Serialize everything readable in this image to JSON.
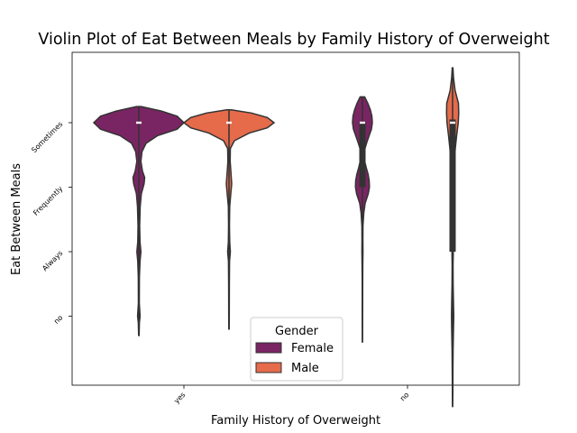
{
  "chart_data": {
    "type": "violin",
    "title": "Violin Plot of Eat Between Meals by Family History of Overweight",
    "xlabel": "Family History of Overweight",
    "ylabel": "Eat Between Meals",
    "categories": [
      "yes",
      "no"
    ],
    "y_categories": [
      "Sometimes",
      "Frequently",
      "Always",
      "no"
    ],
    "y_range": [
      -0.8,
      4.4
    ],
    "legend": {
      "title": "Gender",
      "placement": "lower center",
      "entries": [
        "Female",
        "Male"
      ]
    },
    "series": [
      {
        "name": "Female",
        "color": "#7a2563",
        "violins": [
          {
            "category": "yes",
            "median": 0,
            "q1": 0,
            "q3": 0,
            "profile": [
              [
                -0.25,
                0.05
              ],
              [
                -0.18,
                0.5
              ],
              [
                -0.1,
                0.85
              ],
              [
                0,
                1.0
              ],
              [
                0.1,
                0.85
              ],
              [
                0.2,
                0.42
              ],
              [
                0.32,
                0.16
              ],
              [
                0.45,
                0.07
              ],
              [
                0.6,
                0.045
              ],
              [
                0.75,
                0.08
              ],
              [
                0.85,
                0.13
              ],
              [
                0.95,
                0.115
              ],
              [
                1.1,
                0.055
              ],
              [
                1.3,
                0.03
              ],
              [
                1.6,
                0.018
              ],
              [
                1.85,
                0.025
              ],
              [
                2.0,
                0.045
              ],
              [
                2.15,
                0.025
              ],
              [
                2.4,
                0.012
              ],
              [
                2.8,
                0.01
              ],
              [
                3.0,
                0.028
              ],
              [
                3.1,
                0.012
              ],
              [
                3.3,
                0.005
              ]
            ]
          },
          {
            "category": "no",
            "median": 0,
            "q1": 0,
            "q3": 1.0,
            "profile": [
              [
                -0.4,
                0.05
              ],
              [
                -0.3,
                0.12
              ],
              [
                -0.2,
                0.175
              ],
              [
                -0.1,
                0.21
              ],
              [
                0,
                0.22
              ],
              [
                0.1,
                0.2
              ],
              [
                0.2,
                0.15
              ],
              [
                0.3,
                0.1
              ],
              [
                0.4,
                0.055
              ],
              [
                0.5,
                0.04
              ],
              [
                0.6,
                0.05
              ],
              [
                0.7,
                0.085
              ],
              [
                0.8,
                0.125
              ],
              [
                0.9,
                0.15
              ],
              [
                1.0,
                0.155
              ],
              [
                1.1,
                0.13
              ],
              [
                1.25,
                0.06
              ],
              [
                1.4,
                0.03
              ],
              [
                1.6,
                0.012
              ],
              [
                1.8,
                0.01
              ],
              [
                2.0,
                0.012
              ],
              [
                2.2,
                0.008
              ],
              [
                2.5,
                0.005
              ],
              [
                3.0,
                0.004
              ],
              [
                3.4,
                0.002
              ]
            ]
          }
        ]
      },
      {
        "name": "Male",
        "color": "#e56b4b",
        "violins": [
          {
            "category": "yes",
            "median": 0,
            "q1": 0,
            "q3": 0,
            "profile": [
              [
                -0.2,
                0.05
              ],
              [
                -0.15,
                0.5
              ],
              [
                -0.08,
                0.85
              ],
              [
                0,
                1.0
              ],
              [
                0.08,
                0.85
              ],
              [
                0.16,
                0.45
              ],
              [
                0.28,
                0.12
              ],
              [
                0.4,
                0.03
              ],
              [
                0.6,
                0.025
              ],
              [
                0.8,
                0.045
              ],
              [
                0.95,
                0.06
              ],
              [
                1.1,
                0.04
              ],
              [
                1.3,
                0.015
              ],
              [
                1.6,
                0.01
              ],
              [
                1.85,
                0.015
              ],
              [
                2.0,
                0.03
              ],
              [
                2.15,
                0.012
              ],
              [
                2.5,
                0.008
              ],
              [
                3.0,
                0.006
              ],
              [
                3.2,
                0.003
              ]
            ]
          },
          {
            "category": "no",
            "median": 0,
            "q1": -0.05,
            "q3": 2.0,
            "profile": [
              [
                -0.85,
                0.008
              ],
              [
                -0.7,
                0.02
              ],
              [
                -0.5,
                0.055
              ],
              [
                -0.3,
                0.13
              ],
              [
                -0.15,
                0.135
              ],
              [
                0,
                0.125
              ],
              [
                0.2,
                0.09
              ],
              [
                0.4,
                0.06
              ],
              [
                0.6,
                0.04
              ],
              [
                0.8,
                0.02
              ],
              [
                1.0,
                0.018
              ],
              [
                1.2,
                0.014
              ],
              [
                1.5,
                0.01
              ],
              [
                1.8,
                0.012
              ],
              [
                2.0,
                0.015
              ],
              [
                2.2,
                0.01
              ],
              [
                2.5,
                0.012
              ],
              [
                2.8,
                0.02
              ],
              [
                3.0,
                0.025
              ],
              [
                3.2,
                0.02
              ],
              [
                3.5,
                0.012
              ],
              [
                3.8,
                0.008
              ],
              [
                4.2,
                0.005
              ],
              [
                4.4,
                0.003
              ]
            ]
          }
        ]
      }
    ]
  }
}
